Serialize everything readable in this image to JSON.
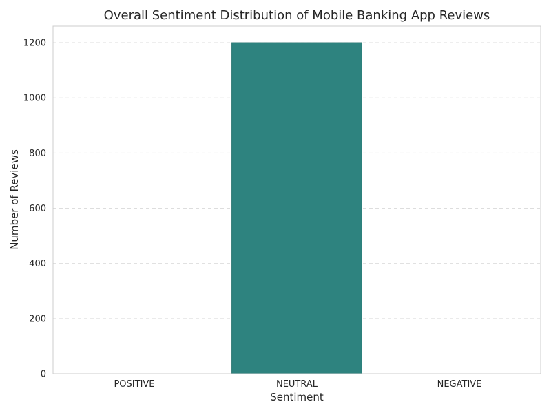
{
  "chart_data": {
    "type": "bar",
    "title": "Overall Sentiment Distribution of Mobile Banking App Reviews",
    "xlabel": "Sentiment",
    "ylabel": "Number of Reviews",
    "categories": [
      "POSITIVE",
      "NEUTRAL",
      "NEGATIVE"
    ],
    "values": [
      0,
      1200,
      0
    ],
    "ylim": [
      0,
      1260
    ],
    "yticks": [
      0,
      200,
      400,
      600,
      800,
      1000,
      1200
    ],
    "grid": true,
    "bar_color": "#2e837f",
    "grid_color": "#dddddd",
    "spine_color": "#cccccc"
  }
}
